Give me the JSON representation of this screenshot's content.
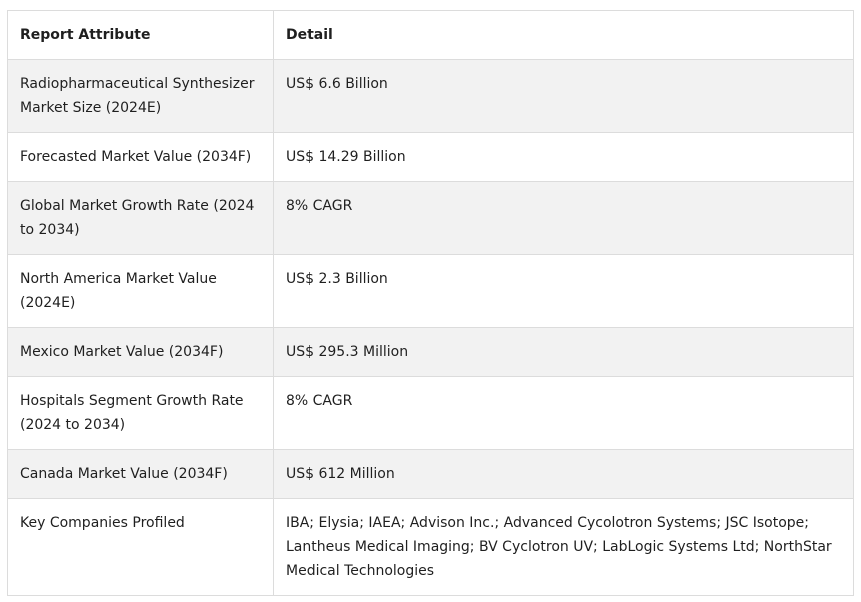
{
  "table": {
    "headers": [
      "Report Attribute",
      "Detail"
    ],
    "rows": [
      {
        "attribute": "Radiopharmaceutical Synthesizer Market Size (2024E)",
        "detail": "US$ 6.6 Billion"
      },
      {
        "attribute": "Forecasted Market Value (2034F)",
        "detail": "US$ 14.29 Billion"
      },
      {
        "attribute": "Global Market Growth Rate (2024 to 2034)",
        "detail": "8% CAGR"
      },
      {
        "attribute": "North America Market Value (2024E)",
        "detail": "US$ 2.3 Billion"
      },
      {
        "attribute": "Mexico Market Value (2034F)",
        "detail": "US$ 295.3 Million"
      },
      {
        "attribute": "Hospitals Segment Growth Rate (2024 to 2034)",
        "detail": "8% CAGR"
      },
      {
        "attribute": "Canada Market Value (2034F)",
        "detail": "US$ 612 Million"
      },
      {
        "attribute": "Key Companies Profiled",
        "detail": "IBA; Elysia; IAEA; Advison Inc.; Advanced Cycolotron Systems; JSC Isotope; Lantheus Medical Imaging; BV Cyclotron UV; LabLogic Systems Ltd; NorthStar Medical Technologies"
      }
    ]
  }
}
